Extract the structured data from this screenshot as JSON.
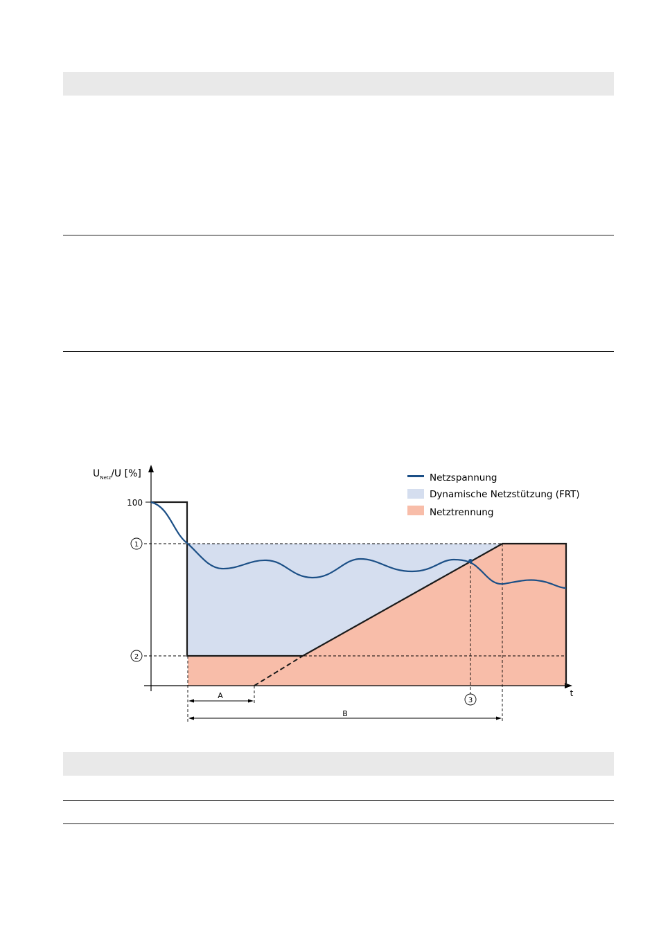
{
  "diagram": {
    "axis": {
      "y_label_main": "U",
      "y_label_sub": "Netz",
      "y_label_rest": "/U [%]",
      "y_tick_100": "100",
      "x_label": "t"
    },
    "markers": {
      "m1": "1",
      "m2": "2",
      "m3": "3"
    },
    "dimensions": {
      "a": "A",
      "b": "B"
    },
    "legend": [
      {
        "label": "Netzspannung",
        "color": "#1b4f86"
      },
      {
        "label": "Dynamische Netzstützung (FRT)",
        "color": "#d5deef"
      },
      {
        "label": "Netztrennung",
        "color": "#f8bda9"
      }
    ]
  }
}
